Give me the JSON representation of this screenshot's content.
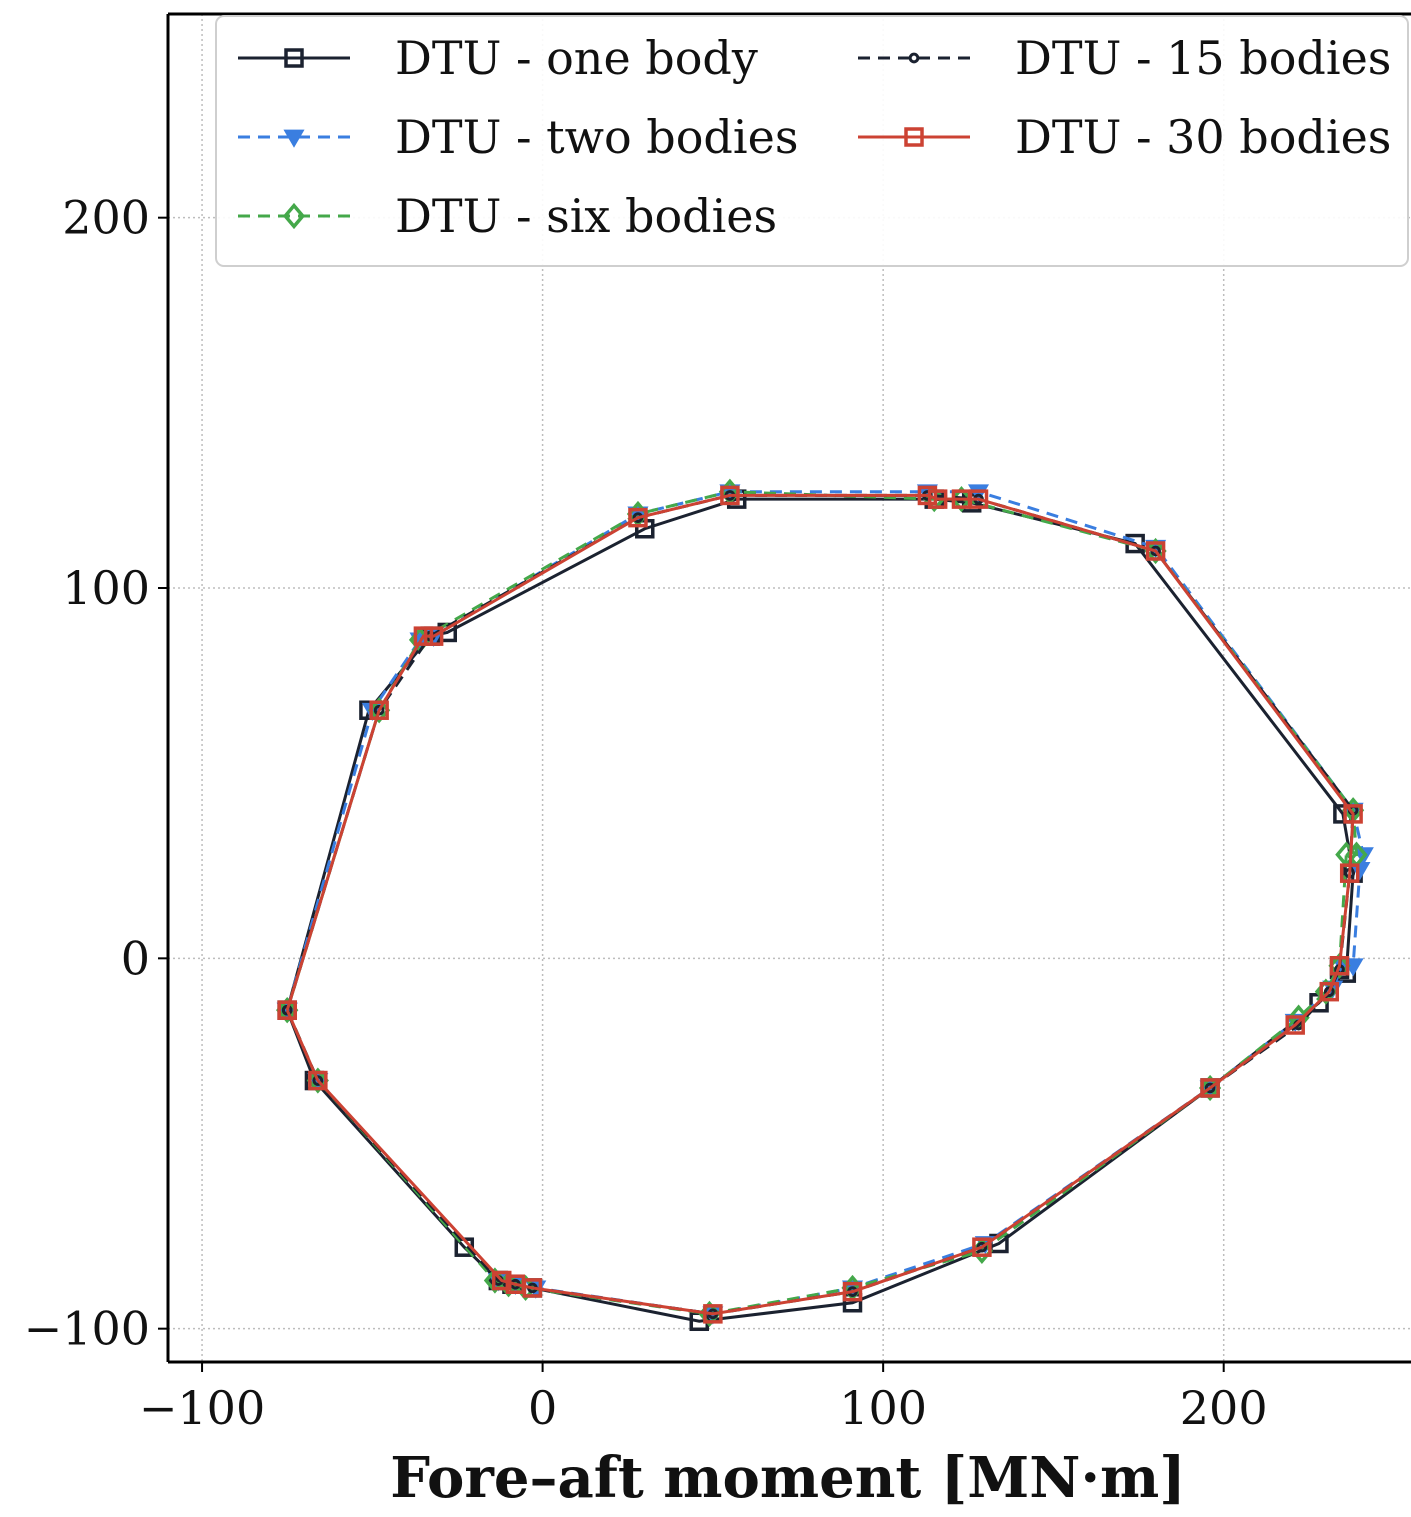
{
  "chart_data": {
    "type": "line",
    "title": "",
    "xlabel": "Fore–aft moment [MN·m]",
    "ylabel": "",
    "xlim": [
      -110,
      255
    ],
    "ylim": [
      -109,
      255
    ],
    "xticks": [
      -100,
      0,
      100,
      200
    ],
    "yticks": [
      -100,
      0,
      100,
      200
    ],
    "xtick_labels": [
      "−100",
      "0",
      "100",
      "200"
    ],
    "ytick_labels": [
      "−100",
      "0",
      "100",
      "200"
    ],
    "grid": true,
    "legend_position": "top",
    "series": [
      {
        "name": "DTU - one body",
        "color": "#1b2230",
        "dash": "solid",
        "marker": "square",
        "points": [
          [
            -75,
            -14
          ],
          [
            -67,
            -33
          ],
          [
            -23,
            -78
          ],
          [
            -13,
            -87
          ],
          [
            -9,
            -88
          ],
          [
            -3,
            -89
          ],
          [
            46,
            -98
          ],
          [
            91,
            -93
          ],
          [
            134,
            -77
          ],
          [
            196,
            -35
          ],
          [
            228,
            -12
          ],
          [
            234,
            -3
          ],
          [
            236,
            -4
          ],
          [
            238,
            23
          ],
          [
            235,
            39
          ],
          [
            174,
            112
          ],
          [
            126,
            123
          ],
          [
            115,
            124
          ],
          [
            57,
            124
          ],
          [
            30,
            116
          ],
          [
            -28,
            88
          ],
          [
            -33,
            87
          ],
          [
            -51,
            67
          ],
          [
            -75,
            -14
          ]
        ]
      },
      {
        "name": "DTU - two bodies",
        "color": "#3a7ee0",
        "dash": "dashed",
        "marker": "triangle-down",
        "points": [
          [
            -75,
            -14
          ],
          [
            -66,
            -33
          ],
          [
            -13,
            -87
          ],
          [
            -8,
            -88
          ],
          [
            -2,
            -89
          ],
          [
            50,
            -96
          ],
          [
            91,
            -89
          ],
          [
            130,
            -77
          ],
          [
            196,
            -35
          ],
          [
            221,
            -17
          ],
          [
            232,
            -8
          ],
          [
            235,
            -2
          ],
          [
            238,
            -2
          ],
          [
            240,
            24
          ],
          [
            241,
            28
          ],
          [
            238,
            40
          ],
          [
            180,
            111
          ],
          [
            128,
            126
          ],
          [
            113,
            126
          ],
          [
            55,
            126
          ],
          [
            28,
            120
          ],
          [
            -32,
            87
          ],
          [
            -36,
            86
          ],
          [
            -50,
            67
          ],
          [
            -75,
            -14
          ]
        ]
      },
      {
        "name": "DTU - six bodies",
        "color": "#44a84a",
        "dash": "dashed",
        "marker": "diamond",
        "points": [
          [
            -75,
            -14
          ],
          [
            -66,
            -33
          ],
          [
            -14,
            -87
          ],
          [
            -10,
            -88
          ],
          [
            -5,
            -89
          ],
          [
            49,
            -96
          ],
          [
            91,
            -89
          ],
          [
            129,
            -79
          ],
          [
            196,
            -35
          ],
          [
            222,
            -16
          ],
          [
            230,
            -9
          ],
          [
            234,
            -2
          ],
          [
            236,
            28
          ],
          [
            239,
            28
          ],
          [
            238,
            40
          ],
          [
            180,
            110
          ],
          [
            123,
            124
          ],
          [
            115,
            124
          ],
          [
            55,
            126
          ],
          [
            28,
            120
          ],
          [
            -36,
            86
          ],
          [
            -48,
            67
          ],
          [
            -75,
            -14
          ]
        ]
      },
      {
        "name": "DTU - 15 bodies",
        "color": "#1b2230",
        "dash": "dashed",
        "marker": "circle",
        "points": [
          [
            -75,
            -14
          ],
          [
            -66,
            -33
          ],
          [
            -13,
            -87
          ],
          [
            -8,
            -88
          ],
          [
            -3,
            -89
          ],
          [
            50,
            -96
          ],
          [
            91,
            -90
          ],
          [
            129,
            -78
          ],
          [
            196,
            -35
          ],
          [
            222,
            -18
          ],
          [
            231,
            -9
          ],
          [
            234,
            -3
          ],
          [
            237,
            23
          ],
          [
            238,
            40
          ],
          [
            180,
            110
          ],
          [
            128,
            124
          ],
          [
            113,
            125
          ],
          [
            55,
            125
          ],
          [
            28,
            119
          ],
          [
            -33,
            87
          ],
          [
            -48,
            67
          ],
          [
            -75,
            -14
          ]
        ]
      },
      {
        "name": "DTU - 30 bodies",
        "color": "#cc4233",
        "dash": "solid",
        "marker": "square",
        "points": [
          [
            -75,
            -14
          ],
          [
            -66,
            -33
          ],
          [
            -12,
            -87
          ],
          [
            -8,
            -88
          ],
          [
            -3,
            -89
          ],
          [
            50,
            -96
          ],
          [
            91,
            -90
          ],
          [
            129,
            -78
          ],
          [
            196,
            -35
          ],
          [
            221,
            -18
          ],
          [
            231,
            -9
          ],
          [
            234,
            -2
          ],
          [
            237,
            23
          ],
          [
            238,
            39
          ],
          [
            180,
            110
          ],
          [
            128,
            124
          ],
          [
            123,
            124
          ],
          [
            116,
            124
          ],
          [
            113,
            125
          ],
          [
            55,
            125
          ],
          [
            28,
            119
          ],
          [
            -32,
            87
          ],
          [
            -35,
            87
          ],
          [
            -48,
            67
          ],
          [
            -75,
            -14
          ]
        ]
      }
    ]
  }
}
